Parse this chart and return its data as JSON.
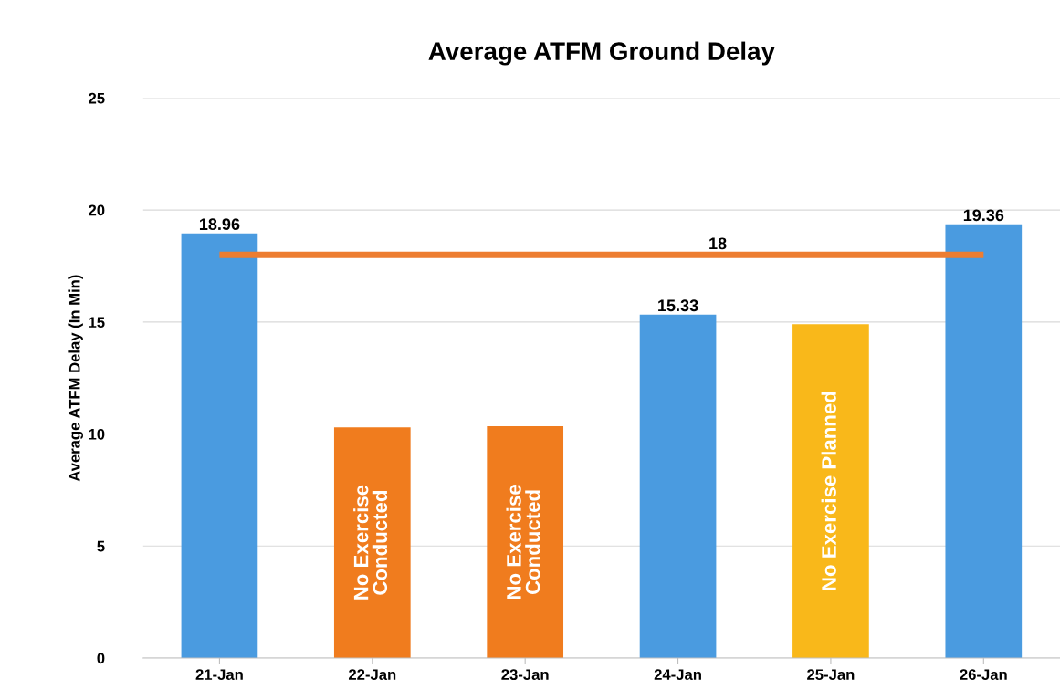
{
  "chart_data": {
    "type": "bar",
    "title": "Average ATFM Ground Delay",
    "ylabel": "Average ATFM Delay (In Min)",
    "categories": [
      "21-Jan",
      "22-Jan",
      "23-Jan",
      "24-Jan",
      "25-Jan",
      "26-Jan"
    ],
    "values": [
      18.96,
      10.3,
      10.35,
      15.33,
      14.9,
      19.36
    ],
    "colors": [
      "#4a9be0",
      "#f07c1e",
      "#f07c1e",
      "#4a9be0",
      "#f9b81a",
      "#4a9be0"
    ],
    "value_labels": [
      "18.96",
      "No Exercise Conducted",
      "No Exercise Conducted",
      "15.33",
      "No Exercise Planned",
      "19.36"
    ],
    "ref_lines": [
      {
        "axis": "y",
        "value": 18,
        "label": "18",
        "color": "#ed7d31"
      }
    ],
    "ylim": [
      0,
      25
    ],
    "yticks": [
      0,
      5,
      10,
      15,
      20,
      25
    ],
    "grid": "y"
  }
}
